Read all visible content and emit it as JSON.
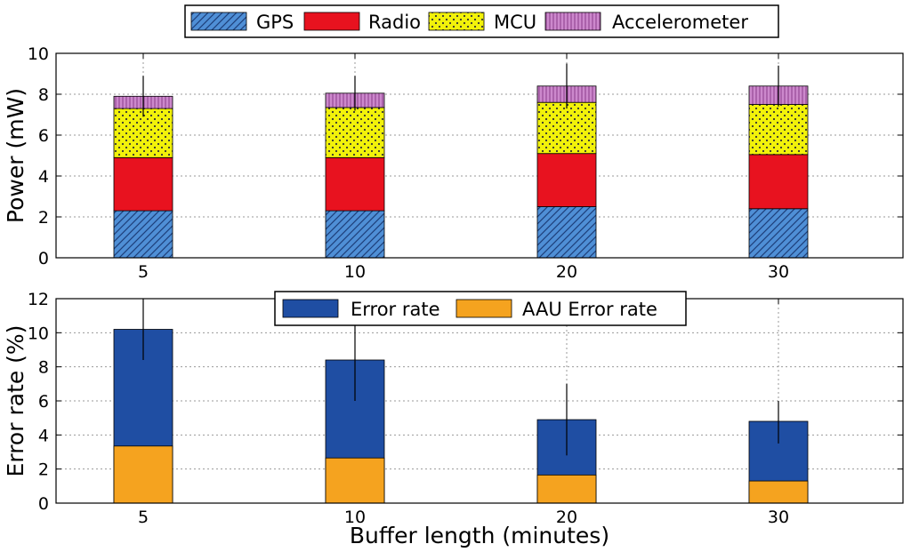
{
  "chart_data": [
    {
      "type": "bar",
      "stacked": true,
      "categories": [
        "5",
        "10",
        "20",
        "30"
      ],
      "ylabel": "Power (mW)",
      "xlabel": "",
      "ylim": [
        0,
        10
      ],
      "yticks": [
        "0",
        "2",
        "4",
        "6",
        "8",
        "10"
      ],
      "grid": true,
      "legend_position": "top-center, outside",
      "series": [
        {
          "name": "GPS",
          "values": [
            2.3,
            2.3,
            2.5,
            2.4
          ],
          "color": "#4f8fd6",
          "pattern": "diagonal-hatch"
        },
        {
          "name": "Radio",
          "values": [
            2.6,
            2.6,
            2.6,
            2.65
          ],
          "color": "#e8121f",
          "pattern": "solid"
        },
        {
          "name": "MCU",
          "values": [
            2.4,
            2.45,
            2.5,
            2.45
          ],
          "color": "#f2f20a",
          "pattern": "dots"
        },
        {
          "name": "Accelerometer",
          "values": [
            0.6,
            0.7,
            0.8,
            0.9
          ],
          "color": "#cc88cc",
          "pattern": "vertical-lines"
        }
      ],
      "error_bars": {
        "upper": [
          8.9,
          8.9,
          9.5,
          9.4
        ],
        "lower": [
          6.9,
          7.2,
          7.3,
          7.4
        ]
      }
    },
    {
      "type": "bar",
      "overlay": true,
      "categories": [
        "5",
        "10",
        "20",
        "30"
      ],
      "ylabel": "Error rate (%)",
      "xlabel": "Buffer length (minutes)",
      "ylim": [
        0,
        12
      ],
      "yticks": [
        "0",
        "2",
        "4",
        "6",
        "8",
        "10",
        "12"
      ],
      "grid": true,
      "legend_position": "top-center, inside",
      "series": [
        {
          "name": "Error rate",
          "values": [
            10.2,
            8.4,
            4.9,
            4.8
          ],
          "color": "#1f4ea3"
        },
        {
          "name": "AAU Error rate",
          "values": [
            3.35,
            2.65,
            1.65,
            1.3
          ],
          "color": "#f5a31f"
        }
      ],
      "error_bars": {
        "series": "Error rate",
        "upper": [
          12.0,
          10.6,
          7.0,
          6.0
        ],
        "lower": [
          8.4,
          6.0,
          2.8,
          3.5
        ]
      }
    }
  ]
}
